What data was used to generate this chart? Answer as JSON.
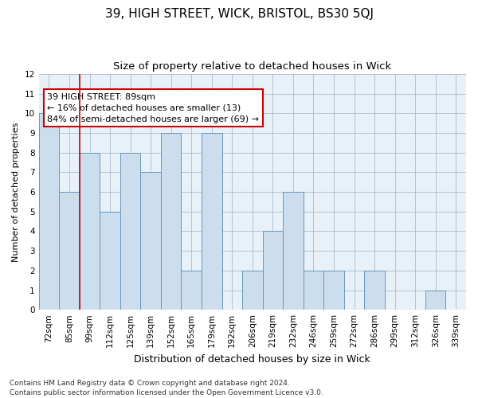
{
  "title": "39, HIGH STREET, WICK, BRISTOL, BS30 5QJ",
  "subtitle": "Size of property relative to detached houses in Wick",
  "xlabel": "Distribution of detached houses by size in Wick",
  "ylabel": "Number of detached properties",
  "categories": [
    "72sqm",
    "85sqm",
    "99sqm",
    "112sqm",
    "125sqm",
    "139sqm",
    "152sqm",
    "165sqm",
    "179sqm",
    "192sqm",
    "206sqm",
    "219sqm",
    "232sqm",
    "246sqm",
    "259sqm",
    "272sqm",
    "286sqm",
    "299sqm",
    "312sqm",
    "326sqm",
    "339sqm"
  ],
  "values": [
    10,
    6,
    8,
    5,
    8,
    7,
    9,
    2,
    9,
    0,
    2,
    4,
    6,
    2,
    2,
    0,
    2,
    0,
    0,
    1,
    0
  ],
  "bar_color": "#ccdded",
  "bar_edge_color": "#6699bb",
  "annotation_text": "39 HIGH STREET: 89sqm\n← 16% of detached houses are smaller (13)\n84% of semi-detached houses are larger (69) →",
  "annotation_box_color": "white",
  "annotation_box_edge": "#cc0000",
  "vline_color": "#cc0000",
  "ylim": [
    0,
    12
  ],
  "yticks": [
    0,
    1,
    2,
    3,
    4,
    5,
    6,
    7,
    8,
    9,
    10,
    11,
    12
  ],
  "grid_color": "#aabbcc",
  "bg_color": "#e8f0f8",
  "footnote": "Contains HM Land Registry data © Crown copyright and database right 2024.\nContains public sector information licensed under the Open Government Licence v3.0.",
  "title_fontsize": 11,
  "subtitle_fontsize": 9.5,
  "xlabel_fontsize": 9,
  "ylabel_fontsize": 8,
  "tick_fontsize": 7.5,
  "annotation_fontsize": 8,
  "footnote_fontsize": 6.5
}
